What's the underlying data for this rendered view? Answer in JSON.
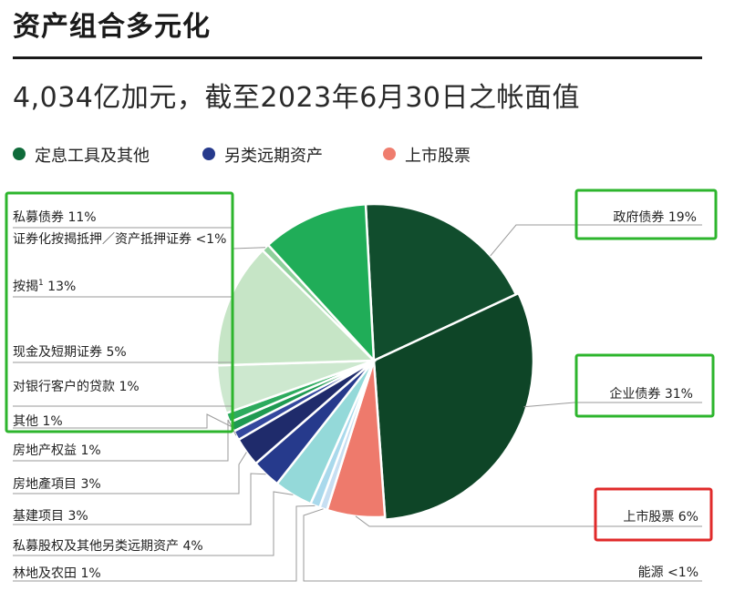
{
  "header": {
    "title": "资产组合多元化",
    "subtitle": "4,034亿加元，截至2023年6月30日之帐面值"
  },
  "legend": [
    {
      "label": "定息工具及其他",
      "color": "#0f6b3a"
    },
    {
      "label": "另类远期资产",
      "color": "#263a8c"
    },
    {
      "label": "上市股票",
      "color": "#ef7d6e"
    }
  ],
  "chart_data": {
    "type": "pie",
    "title": "",
    "slices": [
      {
        "label": "政府债券",
        "value_text": "19%",
        "value": 19,
        "group": "定息工具及其他",
        "color": "#114d2d"
      },
      {
        "label": "企业债券",
        "value_text": "31%",
        "value": 31,
        "group": "定息工具及其他",
        "color": "#0e4527"
      },
      {
        "label": "上市股票",
        "value_text": "6%",
        "value": 6,
        "group": "上市股票",
        "color": "#ee7a6c"
      },
      {
        "label": "能源",
        "value_text": "<1%",
        "value": 0.8,
        "group": "另类远期资产",
        "color": "#c7dff2"
      },
      {
        "label": "林地及农田",
        "value_text": "1%",
        "value": 1,
        "group": "另类远期资产",
        "color": "#a9d9ec"
      },
      {
        "label": "私募股权及其他另类远期资产",
        "value_text": "4%",
        "value": 4,
        "group": "另类远期资产",
        "color": "#94d9d9"
      },
      {
        "label": "基建项目",
        "value_text": "3%",
        "value": 3,
        "group": "另类远期资产",
        "color": "#263a8c"
      },
      {
        "label": "房地產項目",
        "value_text": "3%",
        "value": 3,
        "group": "另类远期资产",
        "color": "#1f2b6b"
      },
      {
        "label": "房地产权益",
        "value_text": "1%",
        "value": 1,
        "group": "另类远期资产",
        "color": "#34489e"
      },
      {
        "label": "其他",
        "value_text": "1%",
        "value": 1,
        "group": "定息工具及其他",
        "color": "#1f9a52"
      },
      {
        "label": "对银行客户的贷款",
        "value_text": "1%",
        "value": 1,
        "group": "定息工具及其他",
        "color": "#2dab5e"
      },
      {
        "label": "现金及短期证券",
        "value_text": "5%",
        "value": 5,
        "group": "定息工具及其他",
        "color": "#cde8cf"
      },
      {
        "label": "按揭",
        "value_text": "13%",
        "value": 13,
        "group": "定息工具及其他",
        "color": "#c6e5c6",
        "footnote": "1"
      },
      {
        "label": "证券化按揭抵押／资产抵押证券",
        "value_text": "<1%",
        "value": 0.8,
        "group": "定息工具及其他",
        "color": "#8fd09c"
      },
      {
        "label": "私募债券",
        "value_text": "11%",
        "value": 11,
        "group": "定息工具及其他",
        "color": "#20ad58"
      }
    ]
  }
}
